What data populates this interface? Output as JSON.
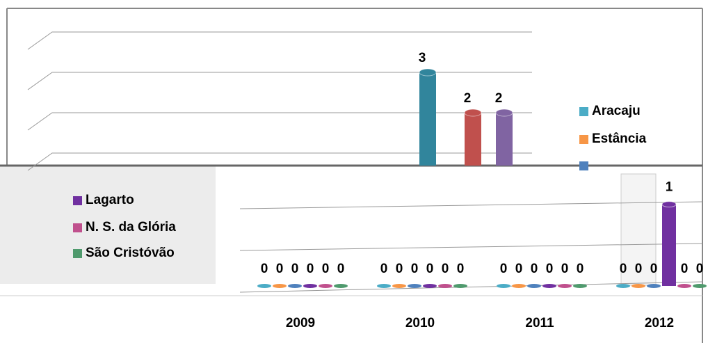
{
  "chart_data": [
    {
      "type": "bar",
      "values": [
        3,
        2,
        2
      ],
      "colors": [
        "#31859c",
        "#c0504d",
        "#8064a2"
      ],
      "ylim": [
        0,
        4
      ],
      "yticks": [
        1,
        2,
        3,
        4
      ],
      "grid": true
    },
    {
      "type": "bar",
      "categories": [
        "2009",
        "2010",
        "2011",
        "2012"
      ],
      "series": [
        {
          "name": "Aracaju",
          "color": "#4bacc6",
          "values": [
            0,
            0,
            0,
            0
          ]
        },
        {
          "name": "Estância",
          "color": "#f79646",
          "values": [
            0,
            0,
            0,
            0
          ]
        },
        {
          "name": null,
          "color": "#4f81bd",
          "values": [
            0,
            0,
            0,
            0
          ]
        },
        {
          "name": "Lagarto",
          "color": "#7030a0",
          "values": [
            0,
            0,
            0,
            1
          ]
        },
        {
          "name": "N. S. da Glória",
          "color": "#c0508d",
          "values": [
            0,
            0,
            0,
            0
          ]
        },
        {
          "name": "São Cristóvão",
          "color": "#4f9a6d",
          "values": [
            0,
            0,
            0,
            0
          ]
        }
      ],
      "ylim": [
        0,
        1.5
      ]
    }
  ]
}
